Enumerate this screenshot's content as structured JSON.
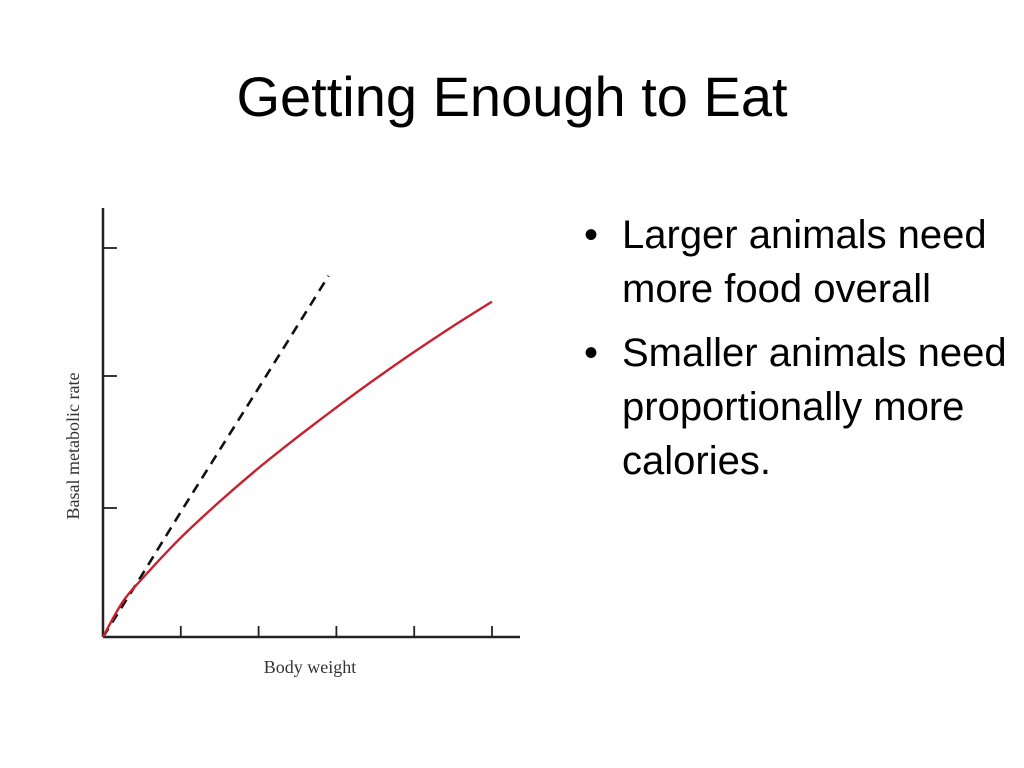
{
  "slide": {
    "title": "Getting Enough to Eat",
    "bullets": [
      "Larger animals need more food overall",
      "Smaller animals need proportionally more calories."
    ]
  },
  "chart_data": {
    "type": "line",
    "title": "",
    "xlabel": "Body weight",
    "ylabel": "Basal metabolic rate",
    "xlim": [
      0,
      5
    ],
    "ylim": [
      0,
      3
    ],
    "x_ticks": [
      1,
      2,
      3,
      4,
      5
    ],
    "y_ticks": [
      1,
      2,
      3
    ],
    "tick_labels_shown": false,
    "grid": false,
    "series": [
      {
        "style": "dashed",
        "color": "#111111",
        "x": [
          0,
          0.5,
          1,
          1.5,
          2,
          2.9
        ],
        "y": [
          0,
          0.48,
          0.97,
          1.45,
          1.93,
          2.8
        ]
      },
      {
        "style": "solid",
        "color": "#c8202e",
        "x": [
          0,
          0.25,
          0.5,
          1,
          1.5,
          2,
          2.5,
          3,
          3.5,
          4,
          4.5,
          5
        ],
        "y": [
          0,
          0.27,
          0.45,
          0.77,
          1.05,
          1.31,
          1.55,
          1.78,
          2.0,
          2.21,
          2.41,
          2.6
        ]
      }
    ]
  }
}
